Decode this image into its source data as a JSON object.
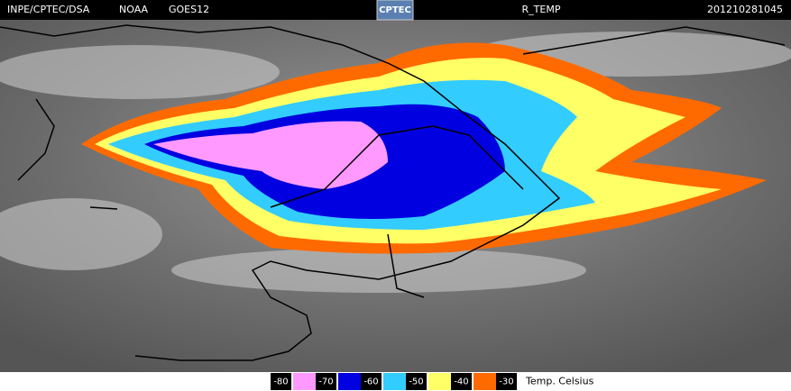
{
  "header": {
    "items": [
      "INPE/CPTEC/DSA",
      "NOAA",
      "GOES12"
    ],
    "logo": "CPTEC",
    "product": "R_TEMP",
    "timestamp": "201210281045"
  },
  "legend": {
    "ticks": [
      -80,
      -70,
      -60,
      -50,
      -40,
      -30
    ],
    "colors": [
      "#ff99ff",
      "#0000e0",
      "#33ccff",
      "#ffff66",
      "#ff6a00"
    ],
    "unit": "Temp. Celsius"
  }
}
